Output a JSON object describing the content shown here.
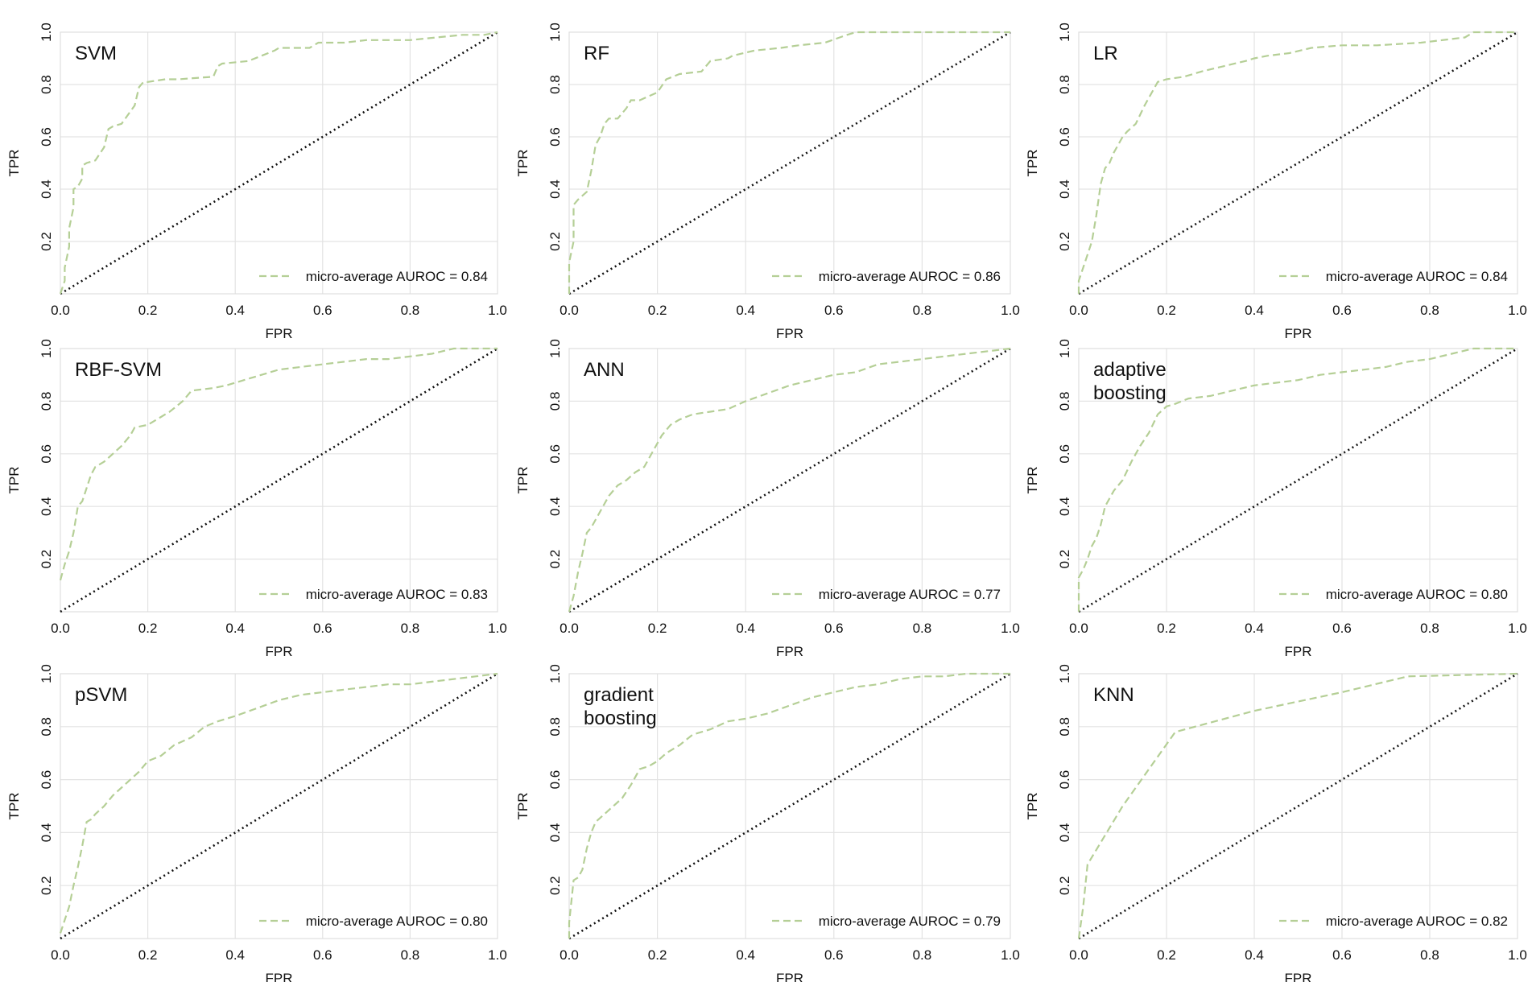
{
  "colors": {
    "roc": "#b5cf96",
    "diagonal": "#111111"
  },
  "chart_data": [
    {
      "type": "line",
      "title": "SVM",
      "xlabel": "FPR",
      "ylabel": "TPR",
      "xlim": [
        0,
        1
      ],
      "ylim": [
        0,
        1
      ],
      "xticks": [
        "0.0",
        "0.2",
        "0.4",
        "0.6",
        "0.8",
        "1.0"
      ],
      "yticks": [
        "0.2",
        "0.4",
        "0.6",
        "0.8",
        "1.0"
      ],
      "legend": "micro-average AUROC = 0.84",
      "legend_position": "bottom-right",
      "series": [
        {
          "name": "micro-average",
          "x": [
            0,
            0.01,
            0.01,
            0.02,
            0.02,
            0.03,
            0.03,
            0.04,
            0.05,
            0.05,
            0.06,
            0.08,
            0.1,
            0.11,
            0.12,
            0.14,
            0.17,
            0.18,
            0.19,
            0.2,
            0.24,
            0.27,
            0.35,
            0.36,
            0.37,
            0.43,
            0.46,
            0.49,
            0.5,
            0.57,
            0.59,
            0.65,
            0.7,
            0.73,
            0.8,
            0.86,
            0.92,
            0.97,
            1.0
          ],
          "y": [
            0,
            0.05,
            0.1,
            0.18,
            0.25,
            0.33,
            0.4,
            0.41,
            0.44,
            0.49,
            0.5,
            0.51,
            0.56,
            0.63,
            0.64,
            0.65,
            0.72,
            0.79,
            0.81,
            0.81,
            0.82,
            0.82,
            0.83,
            0.87,
            0.88,
            0.89,
            0.91,
            0.93,
            0.94,
            0.94,
            0.96,
            0.96,
            0.97,
            0.97,
            0.97,
            0.98,
            0.99,
            0.99,
            1.0
          ]
        }
      ]
    },
    {
      "type": "line",
      "title": "RF",
      "xlabel": "FPR",
      "ylabel": "TPR",
      "xlim": [
        0,
        1
      ],
      "ylim": [
        0,
        1
      ],
      "xticks": [
        "0.0",
        "0.2",
        "0.4",
        "0.6",
        "0.8",
        "1.0"
      ],
      "yticks": [
        "0.2",
        "0.4",
        "0.6",
        "0.8",
        "1.0"
      ],
      "legend": "micro-average AUROC = 0.86",
      "legend_position": "bottom-right",
      "series": [
        {
          "name": "micro-average",
          "x": [
            0,
            0,
            0.01,
            0.01,
            0.02,
            0.04,
            0.05,
            0.06,
            0.07,
            0.08,
            0.09,
            0.11,
            0.13,
            0.14,
            0.16,
            0.2,
            0.22,
            0.25,
            0.3,
            0.32,
            0.36,
            0.37,
            0.42,
            0.48,
            0.52,
            0.58,
            0.63,
            0.65,
            0.72,
            0.8,
            0.87,
            1.0
          ],
          "y": [
            0,
            0.12,
            0.2,
            0.34,
            0.36,
            0.39,
            0.47,
            0.57,
            0.6,
            0.65,
            0.67,
            0.67,
            0.71,
            0.74,
            0.74,
            0.77,
            0.82,
            0.84,
            0.85,
            0.89,
            0.9,
            0.91,
            0.93,
            0.94,
            0.95,
            0.96,
            0.99,
            1.0,
            1.0,
            1.0,
            1.0,
            1.0
          ]
        }
      ]
    },
    {
      "type": "line",
      "title": "LR",
      "xlabel": "FPR",
      "ylabel": "TPR",
      "xlim": [
        0,
        1
      ],
      "ylim": [
        0,
        1
      ],
      "xticks": [
        "0.0",
        "0.2",
        "0.4",
        "0.6",
        "0.8",
        "1.0"
      ],
      "yticks": [
        "0.2",
        "0.4",
        "0.6",
        "0.8",
        "1.0"
      ],
      "legend": "micro-average AUROC = 0.84",
      "legend_position": "bottom-right",
      "series": [
        {
          "name": "micro-average",
          "x": [
            0,
            0,
            0.01,
            0.02,
            0.03,
            0.04,
            0.05,
            0.06,
            0.07,
            0.08,
            0.1,
            0.11,
            0.13,
            0.15,
            0.17,
            0.18,
            0.2,
            0.24,
            0.28,
            0.33,
            0.38,
            0.4,
            0.43,
            0.48,
            0.53,
            0.6,
            0.68,
            0.78,
            0.88,
            0.9,
            1.0
          ],
          "y": [
            0,
            0.05,
            0.1,
            0.15,
            0.2,
            0.3,
            0.42,
            0.48,
            0.5,
            0.54,
            0.6,
            0.62,
            0.65,
            0.72,
            0.78,
            0.81,
            0.82,
            0.83,
            0.85,
            0.87,
            0.89,
            0.9,
            0.91,
            0.92,
            0.94,
            0.95,
            0.95,
            0.96,
            0.98,
            1.0,
            1.0
          ]
        }
      ]
    },
    {
      "type": "line",
      "title": "RBF-SVM",
      "xlabel": "FPR",
      "ylabel": "TPR",
      "xlim": [
        0,
        1
      ],
      "ylim": [
        0,
        1
      ],
      "xticks": [
        "0.0",
        "0.2",
        "0.4",
        "0.6",
        "0.8",
        "1.0"
      ],
      "yticks": [
        "0.2",
        "0.4",
        "0.6",
        "0.8",
        "1.0"
      ],
      "legend": "micro-average AUROC = 0.83",
      "legend_position": "bottom-right",
      "series": [
        {
          "name": "micro-average",
          "x": [
            0,
            0.01,
            0.02,
            0.03,
            0.04,
            0.05,
            0.06,
            0.07,
            0.08,
            0.1,
            0.12,
            0.14,
            0.16,
            0.17,
            0.2,
            0.22,
            0.25,
            0.28,
            0.3,
            0.35,
            0.38,
            0.42,
            0.46,
            0.5,
            0.55,
            0.6,
            0.65,
            0.7,
            0.75,
            0.8,
            0.85,
            0.9,
            1.0
          ],
          "y": [
            0.12,
            0.18,
            0.23,
            0.3,
            0.4,
            0.42,
            0.47,
            0.52,
            0.55,
            0.57,
            0.6,
            0.63,
            0.67,
            0.7,
            0.71,
            0.73,
            0.76,
            0.8,
            0.84,
            0.85,
            0.86,
            0.88,
            0.9,
            0.92,
            0.93,
            0.94,
            0.95,
            0.96,
            0.96,
            0.97,
            0.98,
            1.0,
            1.0
          ]
        }
      ]
    },
    {
      "type": "line",
      "title": "ANN",
      "xlabel": "FPR",
      "ylabel": "TPR",
      "xlim": [
        0,
        1
      ],
      "ylim": [
        0,
        1
      ],
      "xticks": [
        "0.0",
        "0.2",
        "0.4",
        "0.6",
        "0.8",
        "1.0"
      ],
      "yticks": [
        "0.2",
        "0.4",
        "0.6",
        "0.8",
        "1.0"
      ],
      "legend": "micro-average AUROC = 0.77",
      "legend_position": "bottom-right",
      "series": [
        {
          "name": "micro-average",
          "x": [
            0,
            0.01,
            0.02,
            0.03,
            0.04,
            0.05,
            0.07,
            0.09,
            0.11,
            0.13,
            0.15,
            0.17,
            0.19,
            0.21,
            0.23,
            0.25,
            0.28,
            0.32,
            0.36,
            0.4,
            0.45,
            0.5,
            0.55,
            0.6,
            0.65,
            0.7,
            0.75,
            0.8,
            0.85,
            0.9,
            0.95,
            1.0
          ],
          "y": [
            0,
            0.06,
            0.15,
            0.22,
            0.3,
            0.32,
            0.38,
            0.44,
            0.48,
            0.5,
            0.53,
            0.55,
            0.61,
            0.67,
            0.71,
            0.73,
            0.75,
            0.76,
            0.77,
            0.8,
            0.83,
            0.86,
            0.88,
            0.9,
            0.91,
            0.94,
            0.95,
            0.96,
            0.97,
            0.98,
            0.99,
            1.0
          ]
        }
      ]
    },
    {
      "type": "line",
      "title": "adaptive boosting",
      "xlabel": "FPR",
      "ylabel": "TPR",
      "xlim": [
        0,
        1
      ],
      "ylim": [
        0,
        1
      ],
      "xticks": [
        "0.0",
        "0.2",
        "0.4",
        "0.6",
        "0.8",
        "1.0"
      ],
      "yticks": [
        "0.2",
        "0.4",
        "0.6",
        "0.8",
        "1.0"
      ],
      "legend": "micro-average AUROC = 0.80",
      "legend_position": "bottom-right",
      "series": [
        {
          "name": "micro-average",
          "x": [
            0,
            0,
            0.01,
            0.02,
            0.03,
            0.04,
            0.05,
            0.06,
            0.08,
            0.1,
            0.12,
            0.14,
            0.16,
            0.18,
            0.2,
            0.22,
            0.25,
            0.3,
            0.35,
            0.4,
            0.45,
            0.5,
            0.55,
            0.6,
            0.65,
            0.7,
            0.75,
            0.8,
            0.85,
            0.9,
            1.0
          ],
          "y": [
            0,
            0.13,
            0.16,
            0.2,
            0.25,
            0.28,
            0.33,
            0.4,
            0.46,
            0.5,
            0.57,
            0.63,
            0.68,
            0.75,
            0.78,
            0.79,
            0.81,
            0.82,
            0.84,
            0.86,
            0.87,
            0.88,
            0.9,
            0.91,
            0.92,
            0.93,
            0.95,
            0.96,
            0.98,
            1.0,
            1.0
          ]
        }
      ]
    },
    {
      "type": "line",
      "title": "pSVM",
      "xlabel": "FPR",
      "ylabel": "TPR",
      "xlim": [
        0,
        1
      ],
      "ylim": [
        0,
        1
      ],
      "xticks": [
        "0.0",
        "0.2",
        "0.4",
        "0.6",
        "0.8",
        "1.0"
      ],
      "yticks": [
        "0.2",
        "0.4",
        "0.6",
        "0.8",
        "1.0"
      ],
      "legend": "micro-average AUROC = 0.80",
      "legend_position": "bottom-right",
      "series": [
        {
          "name": "micro-average",
          "x": [
            0,
            0.01,
            0.02,
            0.03,
            0.04,
            0.05,
            0.06,
            0.07,
            0.08,
            0.1,
            0.12,
            0.14,
            0.16,
            0.18,
            0.2,
            0.23,
            0.26,
            0.3,
            0.33,
            0.36,
            0.4,
            0.45,
            0.5,
            0.55,
            0.6,
            0.65,
            0.7,
            0.75,
            0.8,
            0.85,
            0.9,
            0.95,
            1.0
          ],
          "y": [
            0.02,
            0.07,
            0.12,
            0.2,
            0.27,
            0.35,
            0.44,
            0.45,
            0.47,
            0.5,
            0.54,
            0.57,
            0.6,
            0.63,
            0.67,
            0.69,
            0.73,
            0.76,
            0.8,
            0.82,
            0.84,
            0.87,
            0.9,
            0.92,
            0.93,
            0.94,
            0.95,
            0.96,
            0.96,
            0.97,
            0.98,
            0.99,
            1.0
          ]
        }
      ]
    },
    {
      "type": "line",
      "title": "gradient boosting",
      "xlabel": "FPR",
      "ylabel": "TPR",
      "xlim": [
        0,
        1
      ],
      "ylim": [
        0,
        1
      ],
      "xticks": [
        "0.0",
        "0.2",
        "0.4",
        "0.6",
        "0.8",
        "1.0"
      ],
      "yticks": [
        "0.2",
        "0.4",
        "0.6",
        "0.8",
        "1.0"
      ],
      "legend": "micro-average AUROC = 0.79",
      "legend_position": "bottom-right",
      "series": [
        {
          "name": "micro-average",
          "x": [
            0,
            0,
            0.01,
            0.02,
            0.03,
            0.04,
            0.05,
            0.06,
            0.08,
            0.1,
            0.12,
            0.14,
            0.16,
            0.18,
            0.2,
            0.22,
            0.25,
            0.28,
            0.32,
            0.36,
            0.4,
            0.45,
            0.5,
            0.55,
            0.6,
            0.65,
            0.7,
            0.75,
            0.8,
            0.85,
            0.9,
            0.95,
            1.0
          ],
          "y": [
            0,
            0.06,
            0.22,
            0.23,
            0.26,
            0.34,
            0.4,
            0.44,
            0.47,
            0.5,
            0.53,
            0.58,
            0.64,
            0.65,
            0.67,
            0.7,
            0.73,
            0.77,
            0.79,
            0.82,
            0.83,
            0.85,
            0.88,
            0.91,
            0.93,
            0.95,
            0.96,
            0.98,
            0.99,
            0.99,
            1.0,
            1.0,
            1.0
          ]
        }
      ]
    },
    {
      "type": "line",
      "title": "KNN",
      "xlabel": "FPR",
      "ylabel": "TPR",
      "xlim": [
        0,
        1
      ],
      "ylim": [
        0,
        1
      ],
      "xticks": [
        "0.0",
        "0.2",
        "0.4",
        "0.6",
        "0.8",
        "1.0"
      ],
      "yticks": [
        "0.2",
        "0.4",
        "0.6",
        "0.8",
        "1.0"
      ],
      "legend": "micro-average AUROC = 0.82",
      "legend_position": "bottom-right",
      "series": [
        {
          "name": "micro-average",
          "x": [
            0,
            0.01,
            0.02,
            0.1,
            0.22,
            0.4,
            0.6,
            0.75,
            1.0
          ],
          "y": [
            0,
            0.12,
            0.28,
            0.5,
            0.78,
            0.86,
            0.93,
            0.99,
            1.0
          ]
        }
      ]
    }
  ]
}
